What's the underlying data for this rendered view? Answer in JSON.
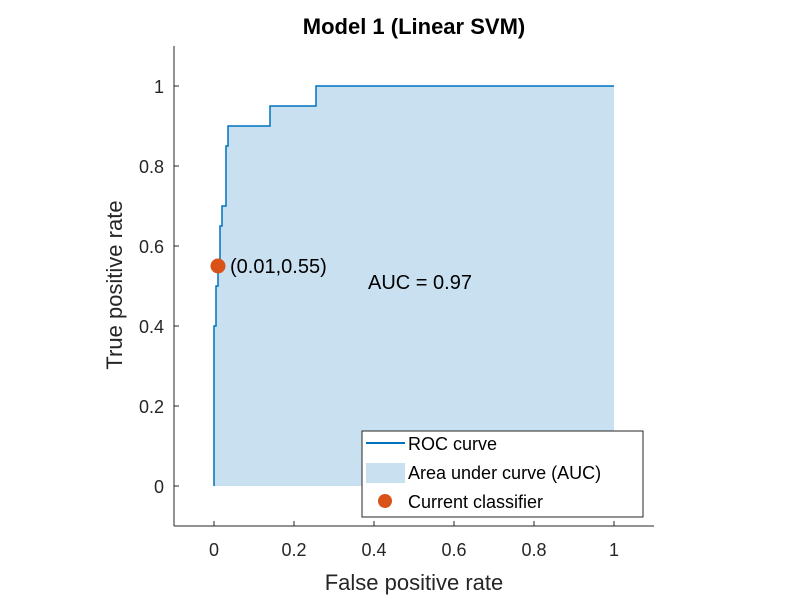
{
  "chart_data": {
    "type": "line",
    "title": "Model 1 (Linear SVM)",
    "xlabel": "False positive rate",
    "ylabel": "True positive rate",
    "xlim": [
      -0.1,
      1.1
    ],
    "ylim": [
      -0.1,
      1.1
    ],
    "xticks": [
      0,
      0.2,
      0.4,
      0.6,
      0.8,
      1
    ],
    "yticks": [
      0,
      0.2,
      0.4,
      0.6,
      0.8,
      1
    ],
    "xtick_labels": [
      "0",
      "0.2",
      "0.4",
      "0.6",
      "0.8",
      "1"
    ],
    "ytick_labels": [
      "0",
      "0.2",
      "0.4",
      "0.6",
      "0.8",
      "1"
    ],
    "grid": false,
    "legend_position": "bottom-right",
    "series": [
      {
        "name": "ROC curve",
        "color": "#0072BD",
        "step": true,
        "x": [
          0,
          0,
          0.005,
          0.005,
          0.01,
          0.01,
          0.015,
          0.015,
          0.02,
          0.02,
          0.03,
          0.03,
          0.035,
          0.035,
          0.045,
          0.045,
          0.14,
          0.14,
          0.255,
          0.255,
          1.0
        ],
        "y": [
          0,
          0.4,
          0.4,
          0.5,
          0.5,
          0.55,
          0.55,
          0.65,
          0.65,
          0.7,
          0.7,
          0.85,
          0.85,
          0.9,
          0.9,
          0.9,
          0.9,
          0.95,
          0.95,
          1.0,
          1.0
        ]
      },
      {
        "name": "Area under curve (AUC)",
        "color": "#C9E0F0",
        "type": "area"
      },
      {
        "name": "Current classifier",
        "color": "#D95319",
        "type": "scatter",
        "points": [
          {
            "x": 0.01,
            "y": 0.55
          }
        ]
      }
    ],
    "annotations": [
      {
        "text": "(0.01,0.55)",
        "x": 0.04,
        "y": 0.55
      },
      {
        "text": "AUC = 0.97",
        "x": 0.385,
        "y": 0.51
      }
    ],
    "legend": [
      "ROC curve",
      "Area under curve (AUC)",
      "Current classifier"
    ]
  }
}
